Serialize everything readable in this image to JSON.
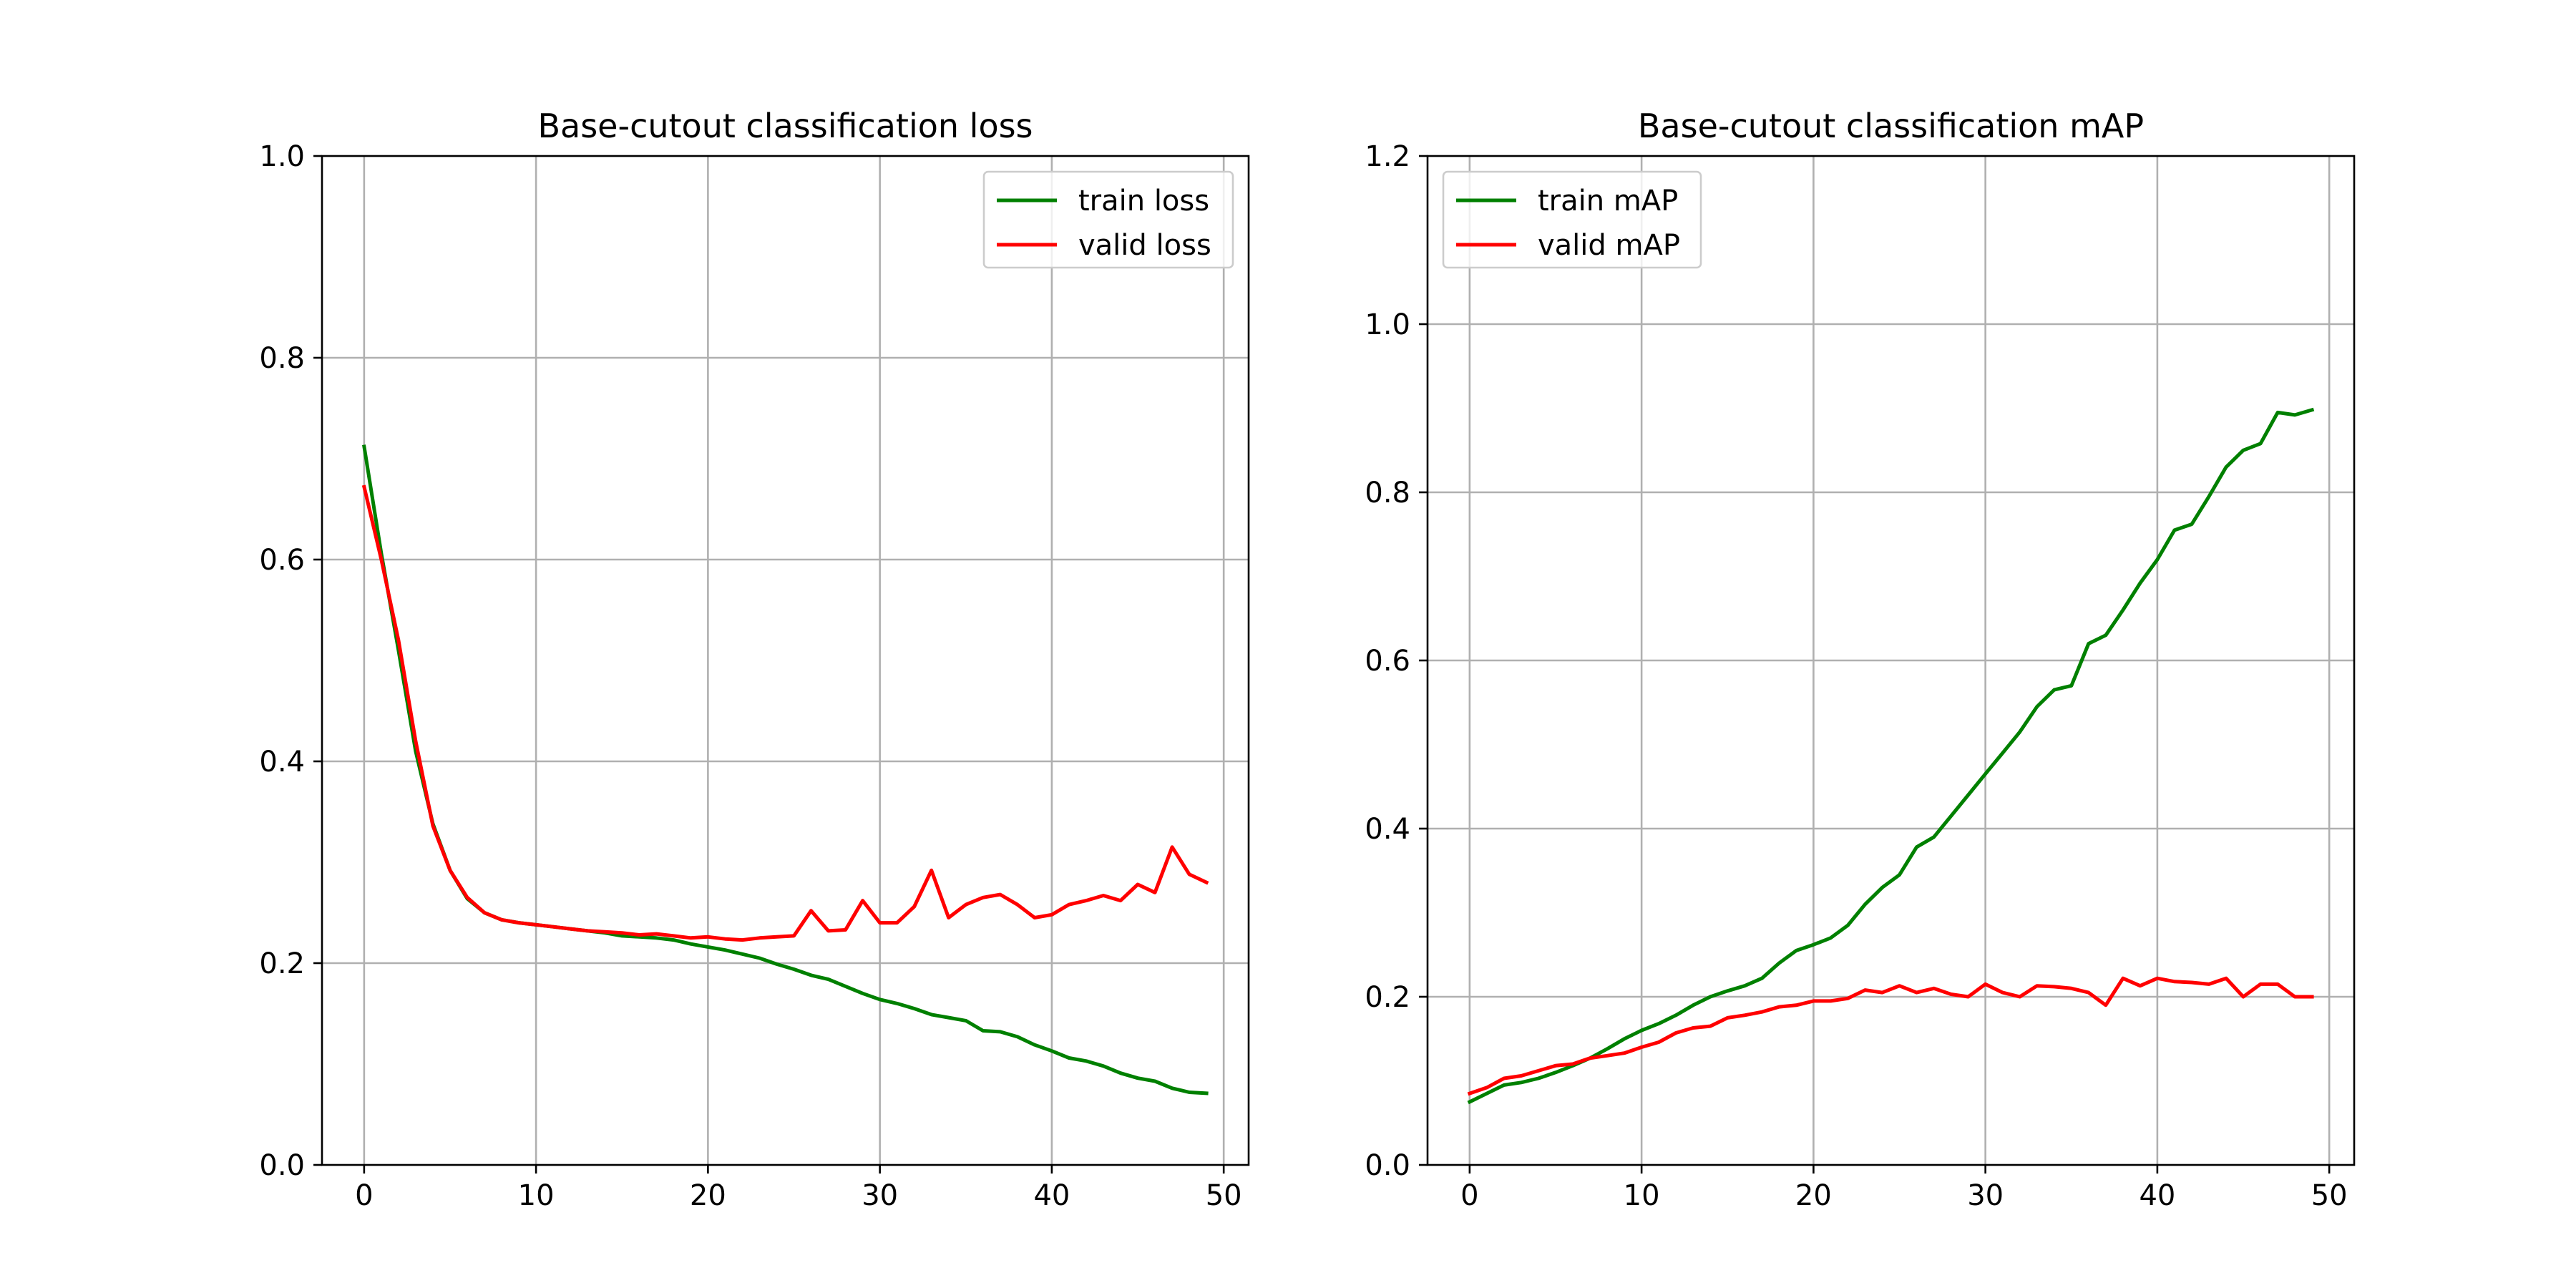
{
  "chart_data": [
    {
      "type": "line",
      "title": "Base-cutout classification loss",
      "xlabel": "",
      "ylabel": "",
      "xlim": [
        -2.45,
        51.45
      ],
      "ylim": [
        0.0,
        1.0
      ],
      "xticks": [
        0,
        10,
        20,
        30,
        40,
        50
      ],
      "yticks": [
        0.0,
        0.2,
        0.4,
        0.6,
        0.8,
        1.0
      ],
      "xtick_labels": [
        "0",
        "10",
        "20",
        "30",
        "40",
        "50"
      ],
      "ytick_labels": [
        "0.0",
        "0.2",
        "0.4",
        "0.6",
        "0.8",
        "1.0"
      ],
      "grid": true,
      "legend_position": "top-right",
      "x": [
        0,
        1,
        2,
        3,
        4,
        5,
        6,
        7,
        8,
        9,
        10,
        11,
        12,
        13,
        14,
        15,
        16,
        17,
        18,
        19,
        20,
        21,
        22,
        23,
        24,
        25,
        26,
        27,
        28,
        29,
        30,
        31,
        32,
        33,
        34,
        35,
        36,
        37,
        38,
        39,
        40,
        41,
        42,
        43,
        44,
        45,
        46,
        47,
        48,
        49
      ],
      "series": [
        {
          "name": "train loss",
          "color": "#008000",
          "values": [
            0.712,
            0.606,
            0.51,
            0.41,
            0.338,
            0.292,
            0.264,
            0.25,
            0.243,
            0.24,
            0.238,
            0.236,
            0.234,
            0.232,
            0.23,
            0.227,
            0.226,
            0.225,
            0.223,
            0.219,
            0.216,
            0.213,
            0.209,
            0.205,
            0.199,
            0.194,
            0.188,
            0.184,
            0.177,
            0.17,
            0.164,
            0.16,
            0.155,
            0.149,
            0.146,
            0.143,
            0.133,
            0.132,
            0.127,
            0.119,
            0.113,
            0.106,
            0.103,
            0.098,
            0.091,
            0.086,
            0.083,
            0.076,
            0.072,
            0.071
          ]
        },
        {
          "name": "valid loss",
          "color": "#ff0000",
          "values": [
            0.672,
            0.6,
            0.52,
            0.42,
            0.336,
            0.292,
            0.265,
            0.25,
            0.243,
            0.24,
            0.238,
            0.236,
            0.234,
            0.232,
            0.231,
            0.23,
            0.228,
            0.229,
            0.227,
            0.225,
            0.226,
            0.224,
            0.223,
            0.225,
            0.226,
            0.227,
            0.252,
            0.232,
            0.233,
            0.262,
            0.24,
            0.24,
            0.256,
            0.292,
            0.245,
            0.258,
            0.265,
            0.268,
            0.258,
            0.245,
            0.248,
            0.258,
            0.262,
            0.267,
            0.262,
            0.278,
            0.27,
            0.315,
            0.288,
            0.28
          ]
        }
      ]
    },
    {
      "type": "line",
      "title": "Base-cutout classification mAP",
      "xlabel": "",
      "ylabel": "",
      "xlim": [
        -2.45,
        51.45
      ],
      "ylim": [
        0.0,
        1.2
      ],
      "xticks": [
        0,
        10,
        20,
        30,
        40,
        50
      ],
      "yticks": [
        0.0,
        0.2,
        0.4,
        0.6,
        0.8,
        1.0,
        1.2
      ],
      "xtick_labels": [
        "0",
        "10",
        "20",
        "30",
        "40",
        "50"
      ],
      "ytick_labels": [
        "0.0",
        "0.2",
        "0.4",
        "0.6",
        "0.8",
        "1.0",
        "1.2"
      ],
      "grid": true,
      "legend_position": "top-left",
      "x": [
        0,
        1,
        2,
        3,
        4,
        5,
        6,
        7,
        8,
        9,
        10,
        11,
        12,
        13,
        14,
        15,
        16,
        17,
        18,
        19,
        20,
        21,
        22,
        23,
        24,
        25,
        26,
        27,
        28,
        29,
        30,
        31,
        32,
        33,
        34,
        35,
        36,
        37,
        38,
        39,
        40,
        41,
        42,
        43,
        44,
        45,
        46,
        47,
        48,
        49
      ],
      "series": [
        {
          "name": "train mAP",
          "color": "#008000",
          "values": [
            0.075,
            0.085,
            0.095,
            0.098,
            0.103,
            0.11,
            0.118,
            0.127,
            0.138,
            0.15,
            0.16,
            0.168,
            0.178,
            0.19,
            0.2,
            0.207,
            0.213,
            0.222,
            0.24,
            0.255,
            0.262,
            0.27,
            0.285,
            0.31,
            0.33,
            0.345,
            0.378,
            0.39,
            0.415,
            0.44,
            0.465,
            0.49,
            0.515,
            0.545,
            0.565,
            0.57,
            0.62,
            0.63,
            0.66,
            0.692,
            0.72,
            0.755,
            0.762,
            0.795,
            0.83,
            0.85,
            0.858,
            0.895,
            0.892,
            0.898
          ]
        },
        {
          "name": "valid mAP",
          "color": "#ff0000",
          "values": [
            0.085,
            0.092,
            0.103,
            0.106,
            0.112,
            0.118,
            0.12,
            0.127,
            0.13,
            0.133,
            0.14,
            0.146,
            0.157,
            0.163,
            0.165,
            0.175,
            0.178,
            0.182,
            0.188,
            0.19,
            0.195,
            0.195,
            0.198,
            0.208,
            0.205,
            0.213,
            0.205,
            0.21,
            0.203,
            0.2,
            0.215,
            0.205,
            0.2,
            0.213,
            0.212,
            0.21,
            0.205,
            0.19,
            0.222,
            0.213,
            0.222,
            0.218,
            0.217,
            0.215,
            0.222,
            0.2,
            0.215,
            0.215,
            0.2,
            0.2
          ]
        }
      ]
    }
  ]
}
